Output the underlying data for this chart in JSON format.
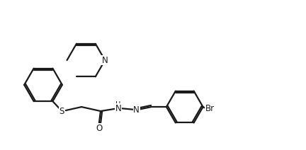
{
  "background_color": "#ffffff",
  "line_color": "#1a1a1a",
  "line_width": 1.6,
  "font_size": 8.5,
  "xlim": [
    0.0,
    4.32
  ],
  "ylim": [
    0.0,
    2.12
  ]
}
